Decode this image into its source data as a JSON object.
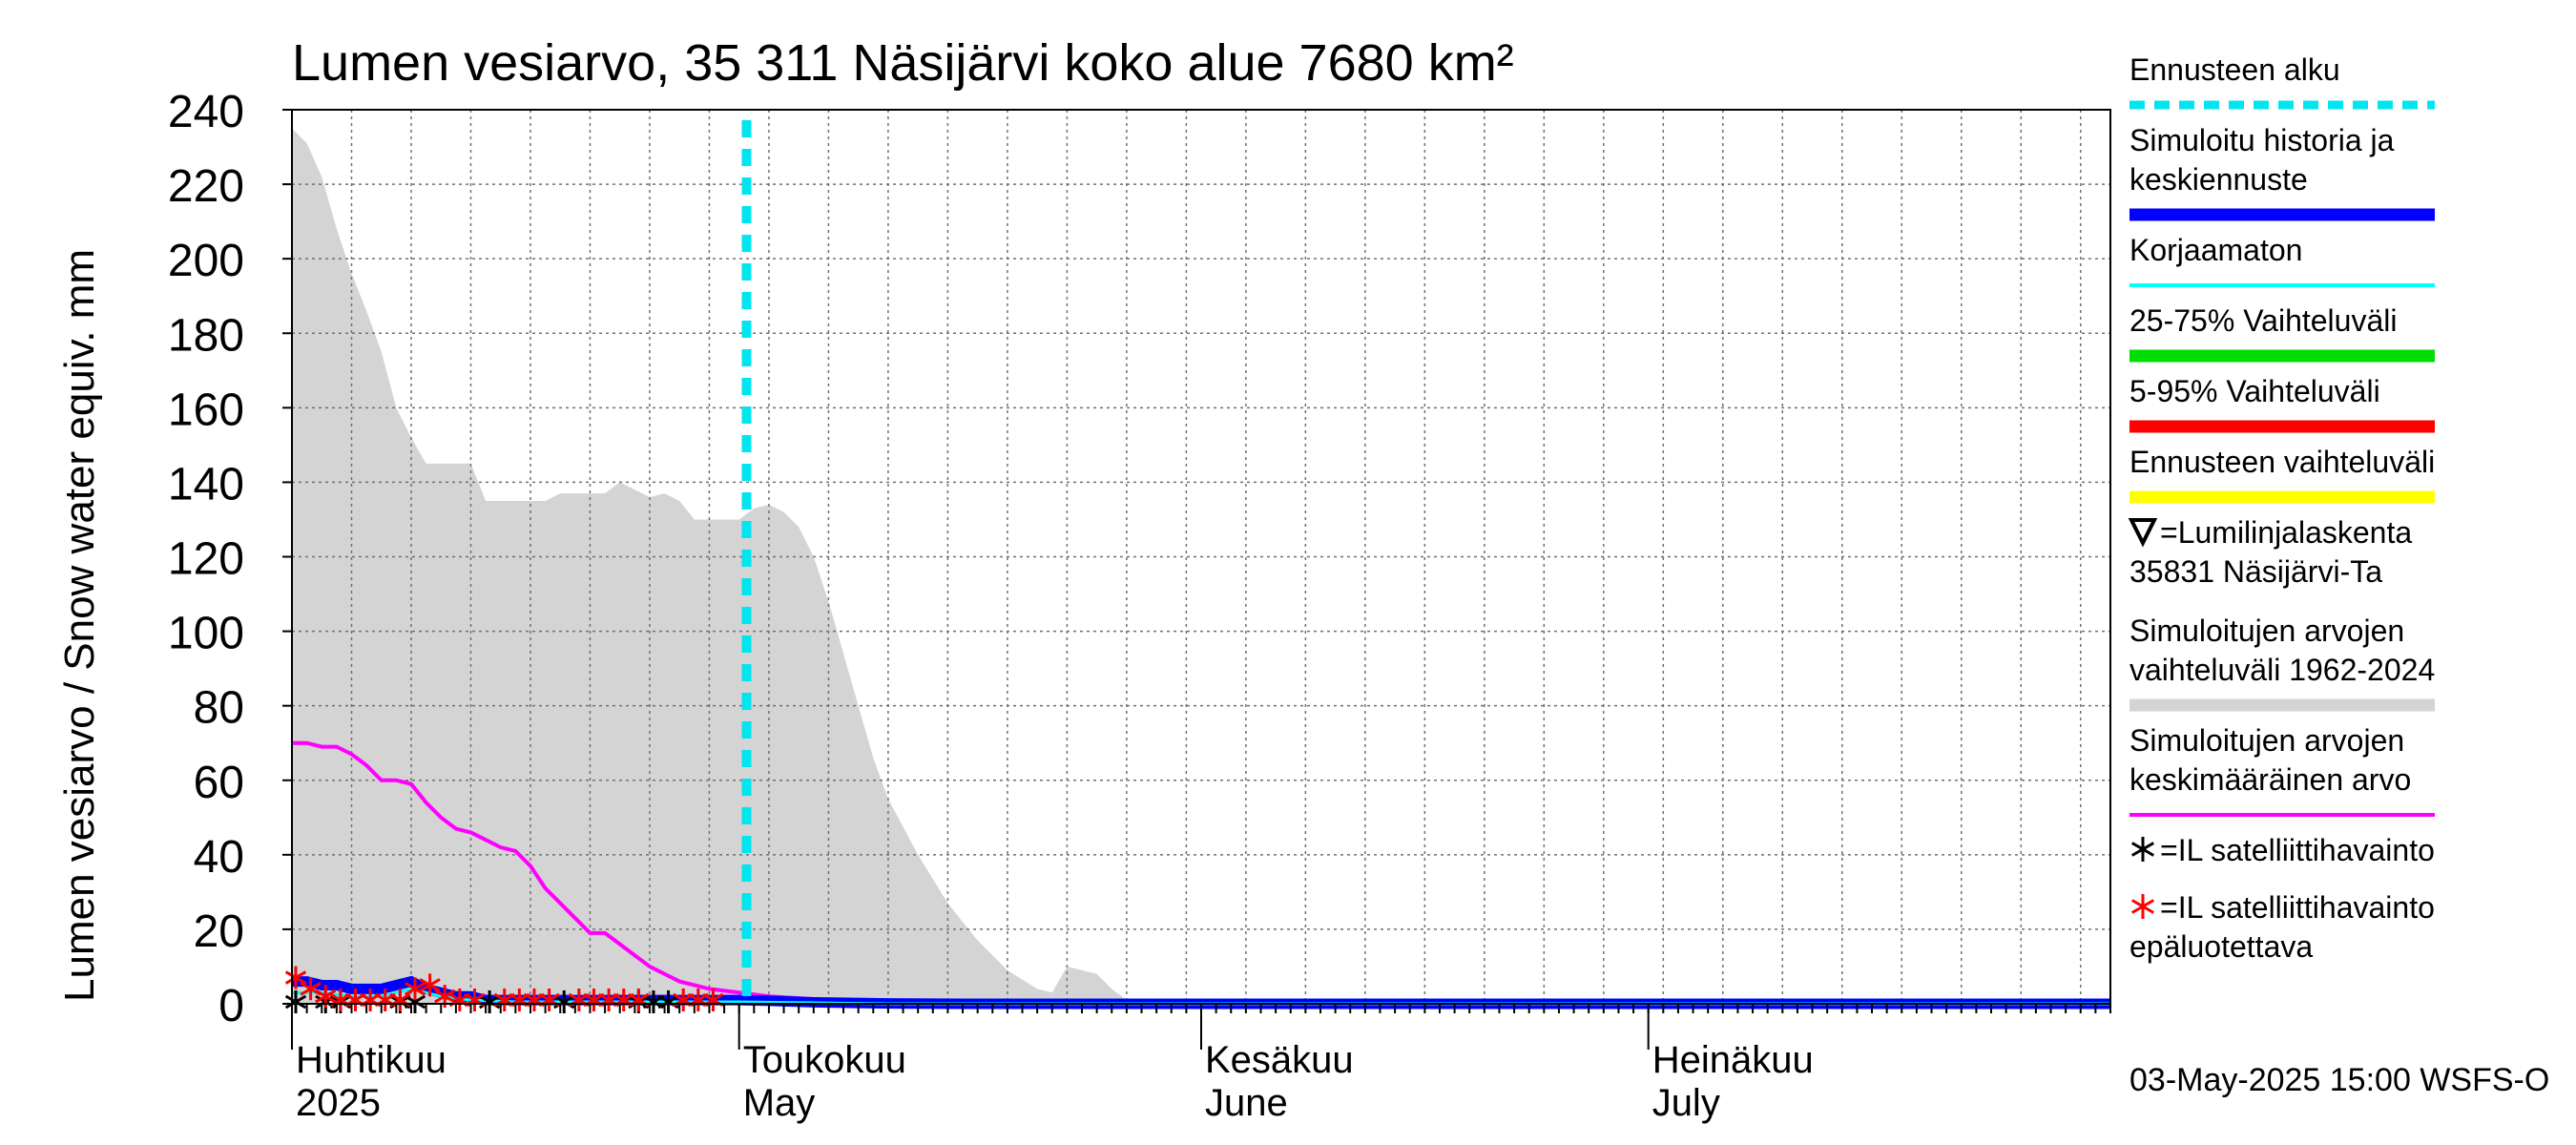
{
  "chart_data": {
    "type": "area",
    "title": "Lumen vesiarvo, 35 311 Näsijärvi koko alue 7680 km²",
    "ylabel": "Lumen vesiarvo / Snow water equiv.    mm",
    "ylim": [
      0,
      240
    ],
    "yticks": [
      0,
      20,
      40,
      60,
      80,
      100,
      120,
      140,
      160,
      180,
      200,
      220,
      240
    ],
    "x_unit": "day index from 2025-04-01",
    "xlim": [
      0,
      122
    ],
    "month_labels": [
      {
        "day": 0,
        "fi": "Huhtikuu",
        "en": "2025"
      },
      {
        "day": 30,
        "fi": "Toukokuu",
        "en": "May"
      },
      {
        "day": 61,
        "fi": "Kesäkuu",
        "en": "June"
      },
      {
        "day": 91,
        "fi": "Heinäkuu",
        "en": "July"
      }
    ],
    "forecast_start_day": 30.5,
    "timestamp": "03-May-2025 15:00 WSFS-O",
    "colors": {
      "range": "#d4d4d4",
      "mean": "#ff00ff",
      "simulated": "#0000ff",
      "uncorrected": "#00ffff",
      "forecast_start": "#00e5ee",
      "p25_75": "#00dd00",
      "p5_95": "#ff0000",
      "forecast_range": "#ffff00",
      "sat": "#000000",
      "sat_unreliable": "#ff0000"
    },
    "series": [
      {
        "name": "Simuloitujen arvojen vaihteluväli 1962-2024",
        "upper": [
          [
            0,
            235
          ],
          [
            1,
            231
          ],
          [
            2,
            222
          ],
          [
            3,
            208
          ],
          [
            4,
            196
          ],
          [
            5,
            186
          ],
          [
            6,
            175
          ],
          [
            7,
            160
          ],
          [
            8,
            152
          ],
          [
            9,
            145
          ],
          [
            10,
            145
          ],
          [
            12,
            145
          ],
          [
            13,
            135
          ],
          [
            17,
            135
          ],
          [
            18,
            137
          ],
          [
            21,
            137
          ],
          [
            22,
            140
          ],
          [
            23,
            138
          ],
          [
            24,
            136
          ],
          [
            25,
            137
          ],
          [
            26,
            135
          ],
          [
            27,
            130
          ],
          [
            28,
            130
          ],
          [
            30,
            130
          ],
          [
            31,
            133
          ],
          [
            32,
            134
          ],
          [
            33,
            132
          ],
          [
            34,
            128
          ],
          [
            35,
            120
          ],
          [
            36,
            108
          ],
          [
            37,
            94
          ],
          [
            38,
            80
          ],
          [
            39,
            66
          ],
          [
            40,
            55
          ],
          [
            42,
            40
          ],
          [
            44,
            27
          ],
          [
            46,
            17
          ],
          [
            48,
            9
          ],
          [
            50,
            4
          ],
          [
            51,
            3
          ],
          [
            52,
            10
          ],
          [
            54,
            8
          ],
          [
            55,
            4
          ],
          [
            56,
            1
          ],
          [
            57,
            0
          ],
          [
            122,
            0
          ]
        ],
        "lower": [
          [
            0,
            0
          ],
          [
            122,
            0
          ]
        ]
      },
      {
        "name": "Simuloitujen arvojen keskimääräinen arvo",
        "points": [
          [
            0,
            70
          ],
          [
            1,
            70
          ],
          [
            2,
            69
          ],
          [
            3,
            69
          ],
          [
            4,
            67
          ],
          [
            5,
            64
          ],
          [
            6,
            60
          ],
          [
            7,
            60
          ],
          [
            8,
            59
          ],
          [
            9,
            54
          ],
          [
            10,
            50
          ],
          [
            11,
            47
          ],
          [
            12,
            46
          ],
          [
            13,
            44
          ],
          [
            14,
            42
          ],
          [
            15,
            41
          ],
          [
            16,
            37
          ],
          [
            17,
            31
          ],
          [
            18,
            27
          ],
          [
            19,
            23
          ],
          [
            20,
            19
          ],
          [
            21,
            19
          ],
          [
            22,
            16
          ],
          [
            23,
            13
          ],
          [
            24,
            10
          ],
          [
            25,
            8
          ],
          [
            26,
            6
          ],
          [
            27,
            5
          ],
          [
            28,
            4
          ],
          [
            30,
            3
          ],
          [
            32,
            2
          ],
          [
            34,
            1.5
          ],
          [
            36,
            1
          ],
          [
            38,
            0.5
          ],
          [
            40,
            0.2
          ],
          [
            42,
            0
          ],
          [
            122,
            0
          ]
        ]
      },
      {
        "name": "Simuloitu historia ja keskiennuste",
        "points": [
          [
            0,
            6
          ],
          [
            1,
            6
          ],
          [
            2,
            5
          ],
          [
            3,
            5
          ],
          [
            4,
            4
          ],
          [
            5,
            4
          ],
          [
            6,
            4
          ],
          [
            7,
            5
          ],
          [
            8,
            6
          ],
          [
            9,
            4
          ],
          [
            10,
            3
          ],
          [
            11,
            2
          ],
          [
            12,
            2
          ],
          [
            13,
            1
          ],
          [
            15,
            1
          ],
          [
            20,
            1
          ],
          [
            25,
            1
          ],
          [
            30,
            1
          ],
          [
            32,
            0.8
          ],
          [
            35,
            0.4
          ],
          [
            40,
            0.1
          ],
          [
            45,
            0
          ],
          [
            122,
            0
          ]
        ]
      },
      {
        "name": "Korjaamaton",
        "points": [
          [
            0,
            3
          ],
          [
            2,
            3
          ],
          [
            4,
            2
          ],
          [
            6,
            2
          ],
          [
            8,
            4
          ],
          [
            9,
            3
          ],
          [
            10,
            2
          ],
          [
            12,
            1
          ],
          [
            15,
            0.5
          ],
          [
            20,
            0.5
          ],
          [
            30,
            0.5
          ],
          [
            40,
            0
          ],
          [
            122,
            0
          ]
        ]
      }
    ],
    "satellite_obs": [
      0,
      2,
      3,
      7,
      8,
      13,
      18,
      23,
      24,
      25
    ],
    "satellite_unreliable": [
      [
        0,
        6
      ],
      [
        1,
        3
      ],
      [
        2,
        1
      ],
      [
        3,
        0
      ],
      [
        4,
        0
      ],
      [
        5,
        0
      ],
      [
        6,
        0
      ],
      [
        7,
        0
      ],
      [
        8,
        3
      ],
      [
        9,
        4
      ],
      [
        10,
        1
      ],
      [
        11,
        0
      ],
      [
        12,
        0
      ],
      [
        14,
        0
      ],
      [
        15,
        0
      ],
      [
        16,
        0
      ],
      [
        17,
        0
      ],
      [
        19,
        0
      ],
      [
        20,
        0
      ],
      [
        21,
        0
      ],
      [
        22,
        0
      ],
      [
        23,
        0
      ],
      [
        26,
        0
      ],
      [
        27,
        0
      ],
      [
        28,
        0
      ]
    ]
  },
  "legend": {
    "items": [
      {
        "key": "forecast_start",
        "lines": [
          "Ennusteen alku"
        ],
        "style": "dash"
      },
      {
        "key": "simulated",
        "lines": [
          "Simuloitu historia ja",
          "keskiennuste"
        ],
        "style": "thick"
      },
      {
        "key": "uncorrected",
        "lines": [
          "Korjaamaton"
        ],
        "style": "thin"
      },
      {
        "key": "p25_75",
        "lines": [
          "25-75% Vaihteluväli"
        ],
        "style": "thick"
      },
      {
        "key": "p5_95",
        "lines": [
          "5-95% Vaihteluväli"
        ],
        "style": "thick"
      },
      {
        "key": "forecast_range",
        "lines": [
          "Ennusteen vaihteluväli"
        ],
        "style": "thick"
      },
      {
        "key": "snow_course",
        "lines": [
          "=Lumilinjalaskenta",
          "35831 Näsijärvi-Ta"
        ],
        "style": "triangle"
      },
      {
        "key": "range",
        "lines": [
          "Simuloitujen arvojen",
          "vaihteluväli 1962-2024"
        ],
        "style": "thick"
      },
      {
        "key": "mean",
        "lines": [
          "Simuloitujen arvojen",
          "keskimääräinen arvo"
        ],
        "style": "thin"
      },
      {
        "key": "sat",
        "lines": [
          "=IL satelliittihavainto"
        ],
        "style": "star"
      },
      {
        "key": "sat_unreliable",
        "lines": [
          "=IL satelliittihavainto",
          "epäluotettava"
        ],
        "style": "star"
      }
    ]
  }
}
